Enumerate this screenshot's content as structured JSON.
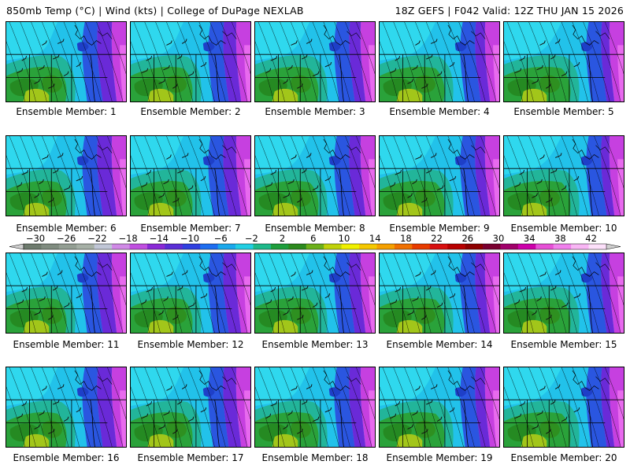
{
  "header": {
    "left": "850mb Temp (°C) | Wind (kts) | College of DuPage NEXLAB",
    "right": "18Z GEFS | F042 Valid: 12Z THU JAN 15 2026"
  },
  "members": [
    "Ensemble Member: 1",
    "Ensemble Member: 2",
    "Ensemble Member: 3",
    "Ensemble Member: 4",
    "Ensemble Member: 5",
    "Ensemble Member: 6",
    "Ensemble Member: 7",
    "Ensemble Member: 8",
    "Ensemble Member: 9",
    "Ensemble Member: 10",
    "Ensemble Member: 11",
    "Ensemble Member: 12",
    "Ensemble Member: 13",
    "Ensemble Member: 14",
    "Ensemble Member: 15",
    "Ensemble Member: 16",
    "Ensemble Member: 17",
    "Ensemble Member: 18",
    "Ensemble Member: 19",
    "Ensemble Member: 20"
  ],
  "colorbar": {
    "labels": [
      "−30",
      "−26",
      "−22",
      "−18",
      "−14",
      "−10",
      "−6",
      "−2",
      "2",
      "6",
      "10",
      "14",
      "18",
      "22",
      "26",
      "30",
      "34",
      "38",
      "42"
    ],
    "colors": [
      "#6e7b6e",
      "#808c80",
      "#939e93",
      "#a6b0a6",
      "#c0c6d6",
      "#d08ae6",
      "#c04fe0",
      "#8a2ad6",
      "#5a2fd6",
      "#3040e0",
      "#1e6ef0",
      "#1aa8ec",
      "#22cfe3",
      "#1eb98a",
      "#1e9e3c",
      "#2c8a1e",
      "#6cb01a",
      "#c0d20a",
      "#f0f000",
      "#f5c800",
      "#f5a000",
      "#f07000",
      "#e83c00",
      "#d81010",
      "#b80000",
      "#8e0000",
      "#7a0030",
      "#a0006a",
      "#cc00aa",
      "#e650d6",
      "#f080ec",
      "#f8b6f4",
      "#fce0fa"
    ],
    "arrow_color": "#cfcfcf"
  }
}
